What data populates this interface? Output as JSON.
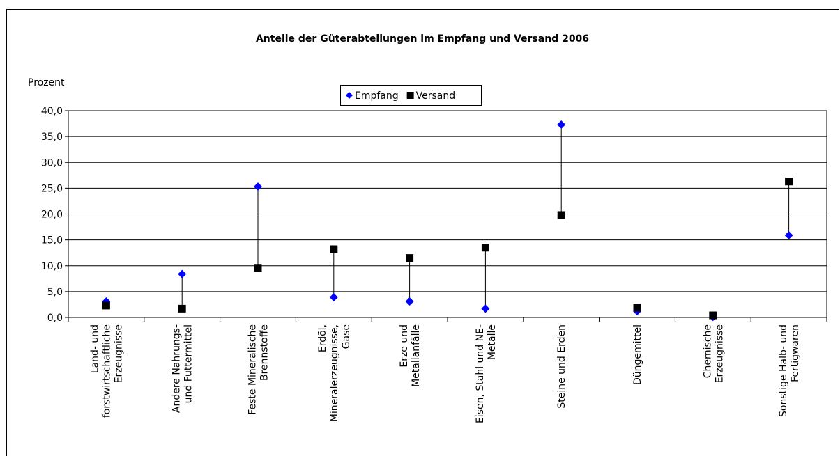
{
  "chart_data": {
    "type": "dot-range",
    "title": "Anteile der Güterabteilungen im Empfang und Versand 2006",
    "y_label": "Prozent",
    "categories": [
      [
        "Land- und",
        "forstwirtschaftliche",
        "Erzeugnisse"
      ],
      [
        "Andere Nahrungs-",
        "und Futtermittel"
      ],
      [
        "Feste Mineralische",
        "Brennstoffe"
      ],
      [
        "Erdöl,",
        "Mineralerzeugnisse,",
        "Gase"
      ],
      [
        "Erze und",
        "Metallanfälle"
      ],
      [
        "Eisen, Stahl und NE-",
        "Metalle"
      ],
      [
        "Steine und Erden"
      ],
      [
        "Düngemittel"
      ],
      [
        "Chemische",
        "Erzeugnisse"
      ],
      [
        "Sonstige Halb- und",
        "Fertigwaren"
      ]
    ],
    "series": [
      {
        "name": "Empfang",
        "color": "#0000ff",
        "marker": "diamond",
        "values": [
          3.1,
          8.4,
          25.3,
          3.9,
          3.1,
          1.7,
          37.3,
          1.2,
          0.1,
          15.9
        ]
      },
      {
        "name": "Versand",
        "color": "#000000",
        "marker": "square",
        "values": [
          2.3,
          1.7,
          9.6,
          13.2,
          11.5,
          13.5,
          19.8,
          1.9,
          0.4,
          26.3
        ]
      }
    ],
    "ylim": [
      0,
      40
    ],
    "yticks": [
      {
        "value": 0,
        "label": "0,0"
      },
      {
        "value": 5,
        "label": "5,0"
      },
      {
        "value": 10,
        "label": "10,0"
      },
      {
        "value": 15,
        "label": "15,0"
      },
      {
        "value": 20,
        "label": "20,0"
      },
      {
        "value": 25,
        "label": "25,0"
      },
      {
        "value": 30,
        "label": "30,0"
      },
      {
        "value": 35,
        "label": "35,0"
      },
      {
        "value": 40,
        "label": "40,0"
      }
    ],
    "grid": true,
    "legend": "top"
  }
}
